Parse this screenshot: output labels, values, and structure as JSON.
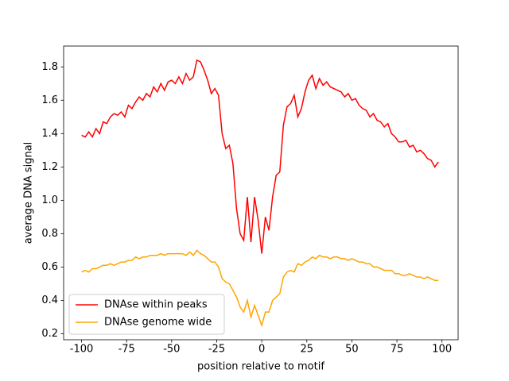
{
  "chart_data": {
    "type": "line",
    "xlabel": "position relative to motif",
    "ylabel": "average DNA signal",
    "x": [
      -100,
      -98,
      -96,
      -94,
      -92,
      -90,
      -88,
      -86,
      -84,
      -82,
      -80,
      -78,
      -76,
      -74,
      -72,
      -70,
      -68,
      -66,
      -64,
      -62,
      -60,
      -58,
      -56,
      -54,
      -52,
      -50,
      -48,
      -46,
      -44,
      -42,
      -40,
      -38,
      -36,
      -34,
      -32,
      -30,
      -28,
      -26,
      -24,
      -22,
      -20,
      -18,
      -16,
      -14,
      -12,
      -10,
      -8,
      -6,
      -4,
      -2,
      0,
      2,
      4,
      6,
      8,
      10,
      12,
      14,
      16,
      18,
      20,
      22,
      24,
      26,
      28,
      30,
      32,
      34,
      36,
      38,
      40,
      42,
      44,
      46,
      48,
      50,
      52,
      54,
      56,
      58,
      60,
      62,
      64,
      66,
      68,
      70,
      72,
      74,
      76,
      78,
      80,
      82,
      84,
      86,
      88,
      90,
      92,
      94,
      96,
      98
    ],
    "series": [
      {
        "name": "DNAse within peaks",
        "color": "#ff0000",
        "values": [
          1.39,
          1.38,
          1.41,
          1.38,
          1.43,
          1.4,
          1.47,
          1.46,
          1.5,
          1.52,
          1.51,
          1.53,
          1.5,
          1.57,
          1.55,
          1.59,
          1.62,
          1.6,
          1.64,
          1.62,
          1.68,
          1.65,
          1.7,
          1.66,
          1.71,
          1.72,
          1.7,
          1.74,
          1.7,
          1.76,
          1.72,
          1.74,
          1.84,
          1.83,
          1.78,
          1.72,
          1.64,
          1.67,
          1.63,
          1.4,
          1.31,
          1.33,
          1.22,
          0.95,
          0.8,
          0.76,
          1.02,
          0.75,
          1.02,
          0.88,
          0.68,
          0.9,
          0.82,
          1.02,
          1.15,
          1.17,
          1.45,
          1.56,
          1.58,
          1.63,
          1.5,
          1.55,
          1.65,
          1.72,
          1.75,
          1.67,
          1.73,
          1.69,
          1.71,
          1.68,
          1.67,
          1.66,
          1.65,
          1.62,
          1.64,
          1.6,
          1.61,
          1.57,
          1.55,
          1.54,
          1.5,
          1.52,
          1.48,
          1.47,
          1.44,
          1.46,
          1.4,
          1.38,
          1.35,
          1.35,
          1.36,
          1.32,
          1.33,
          1.29,
          1.3,
          1.28,
          1.25,
          1.24,
          1.2,
          1.23
        ]
      },
      {
        "name": "DNAse genome wide",
        "color": "#ffa500",
        "values": [
          0.57,
          0.58,
          0.57,
          0.59,
          0.59,
          0.6,
          0.61,
          0.61,
          0.62,
          0.61,
          0.62,
          0.63,
          0.63,
          0.64,
          0.64,
          0.66,
          0.65,
          0.66,
          0.66,
          0.67,
          0.67,
          0.67,
          0.68,
          0.67,
          0.68,
          0.68,
          0.68,
          0.68,
          0.68,
          0.67,
          0.69,
          0.67,
          0.7,
          0.68,
          0.67,
          0.65,
          0.63,
          0.63,
          0.6,
          0.53,
          0.51,
          0.5,
          0.46,
          0.42,
          0.36,
          0.33,
          0.4,
          0.3,
          0.37,
          0.31,
          0.25,
          0.33,
          0.33,
          0.4,
          0.42,
          0.44,
          0.54,
          0.57,
          0.58,
          0.57,
          0.62,
          0.61,
          0.63,
          0.64,
          0.66,
          0.65,
          0.67,
          0.66,
          0.66,
          0.65,
          0.66,
          0.66,
          0.65,
          0.65,
          0.64,
          0.65,
          0.64,
          0.63,
          0.63,
          0.62,
          0.62,
          0.6,
          0.6,
          0.59,
          0.58,
          0.58,
          0.58,
          0.56,
          0.56,
          0.55,
          0.55,
          0.56,
          0.55,
          0.54,
          0.54,
          0.53,
          0.54,
          0.53,
          0.52,
          0.52
        ]
      }
    ],
    "xlim": [
      -109.95,
      108.95
    ],
    "xticks": [
      -100,
      -75,
      -50,
      -25,
      0,
      25,
      50,
      75,
      100
    ],
    "ylim": [
      0.164,
      1.925
    ],
    "yticks": [
      0.2,
      0.4,
      0.6,
      0.8,
      {
        "value": 1,
        "label": "1.0"
      },
      1.2,
      1.4,
      1.6,
      1.8
    ],
    "legend": "lower left"
  }
}
